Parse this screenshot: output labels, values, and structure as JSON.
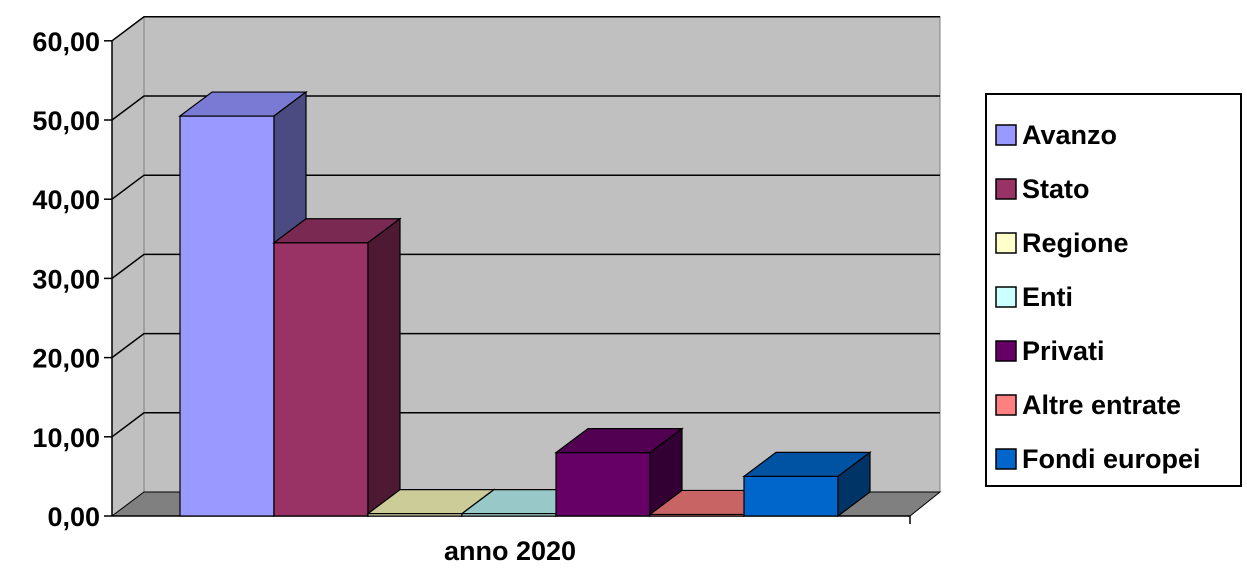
{
  "chart_data": {
    "type": "bar",
    "categories": [
      "anno 2020"
    ],
    "series": [
      {
        "name": "Avanzo",
        "values": [
          50.5
        ],
        "color": "#9999FF",
        "side": "#4B4B82",
        "top": "#7A7AD4"
      },
      {
        "name": "Stato",
        "values": [
          34.5
        ],
        "color": "#993366",
        "side": "#4E1A33",
        "top": "#7A2952"
      },
      {
        "name": "Regione",
        "values": [
          0.3
        ],
        "color": "#FFFFCC",
        "side": "#9A9A70",
        "top": "#CCCC99"
      },
      {
        "name": "Enti",
        "values": [
          0.3
        ],
        "color": "#CCFFFF",
        "side": "#70A0A0",
        "top": "#99C8C8"
      },
      {
        "name": "Privati",
        "values": [
          8.0
        ],
        "color": "#660066",
        "side": "#330033",
        "top": "#520052"
      },
      {
        "name": "Altre entrate",
        "values": [
          0.2
        ],
        "color": "#FF8080",
        "side": "#A04A4A",
        "top": "#C86464"
      },
      {
        "name": "Fondi europei",
        "values": [
          5.0
        ],
        "color": "#0066CC",
        "side": "#003366",
        "top": "#0052A3"
      }
    ],
    "yticks": [
      "0,00",
      "10,00",
      "20,00",
      "30,00",
      "40,00",
      "50,00",
      "60,00"
    ],
    "ylim": [
      0,
      60
    ],
    "grid": true,
    "legend": "right",
    "colors": {
      "wall": "#C0C0C0",
      "floor": "#808080",
      "gridline": "#000000"
    }
  }
}
